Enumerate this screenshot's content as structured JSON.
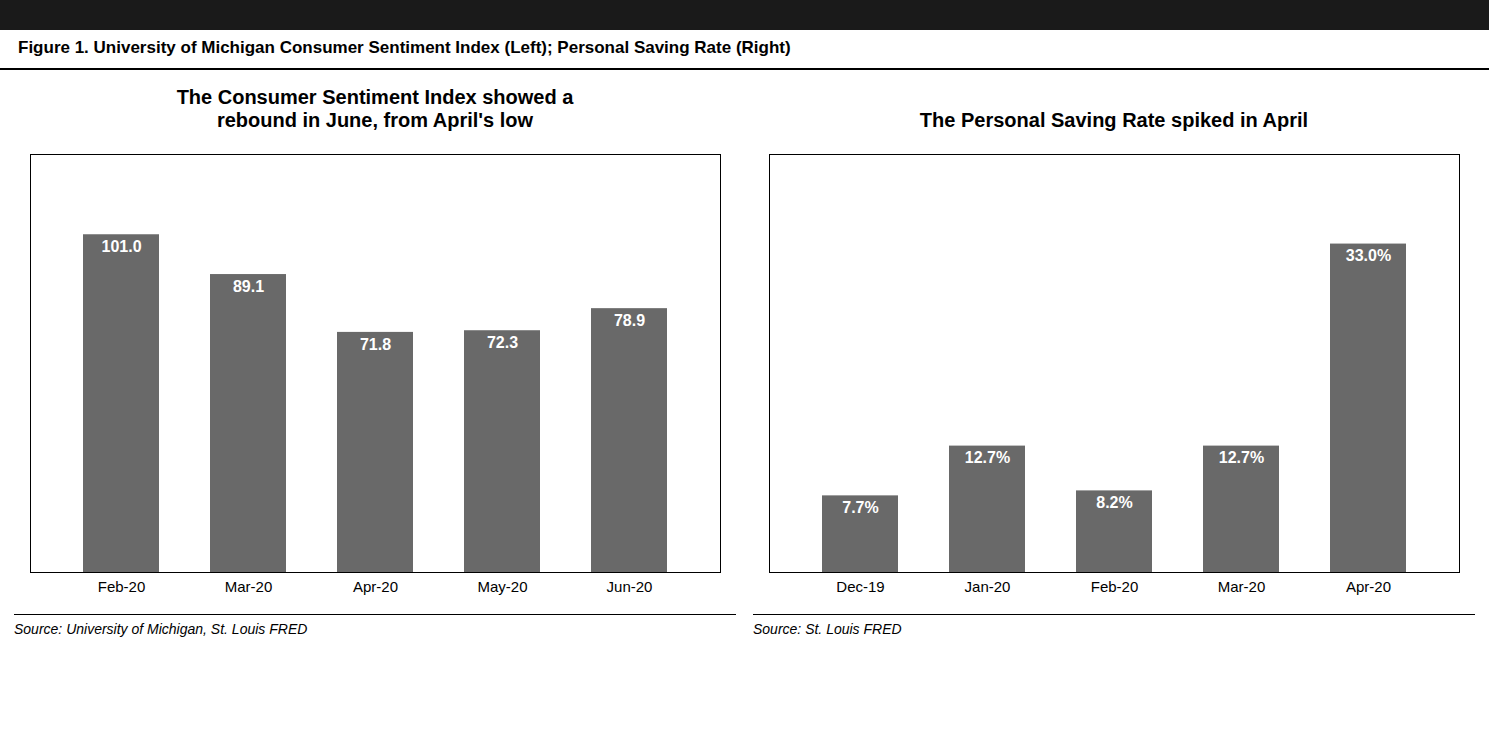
{
  "title": "Figure 1. University of Michigan Consumer Sentiment Index (Left); Personal Saving Rate (Right)",
  "chart_data": [
    {
      "type": "bar",
      "title": "The Consumer Sentiment Index showed a\nrebound in June, from April's low",
      "categories": [
        "Feb-20",
        "Mar-20",
        "Apr-20",
        "May-20",
        "Jun-20"
      ],
      "values": [
        101.0,
        89.1,
        71.8,
        72.3,
        78.9
      ],
      "value_labels": [
        "101.0",
        "89.1",
        "71.8",
        "72.3",
        "78.9"
      ],
      "data_labels": true,
      "color": "#696969",
      "ylim": [
        0,
        125
      ],
      "tick_labels": "x",
      "grid": false,
      "source": "Source: University of Michigan, St. Louis FRED"
    },
    {
      "type": "bar",
      "title": "The Personal Saving Rate spiked in April",
      "categories": [
        "Dec-19",
        "Jan-20",
        "Feb-20",
        "Mar-20",
        "Apr-20"
      ],
      "values": [
        7.7,
        12.7,
        8.2,
        12.7,
        33.0
      ],
      "value_labels": [
        "7.7%",
        "12.7%",
        "8.2%",
        "12.7%",
        "33.0%"
      ],
      "data_labels": true,
      "color": "#696969",
      "ylim": [
        0,
        42
      ],
      "tick_labels": "x",
      "grid": false,
      "source": "Source: St. Louis FRED"
    }
  ]
}
